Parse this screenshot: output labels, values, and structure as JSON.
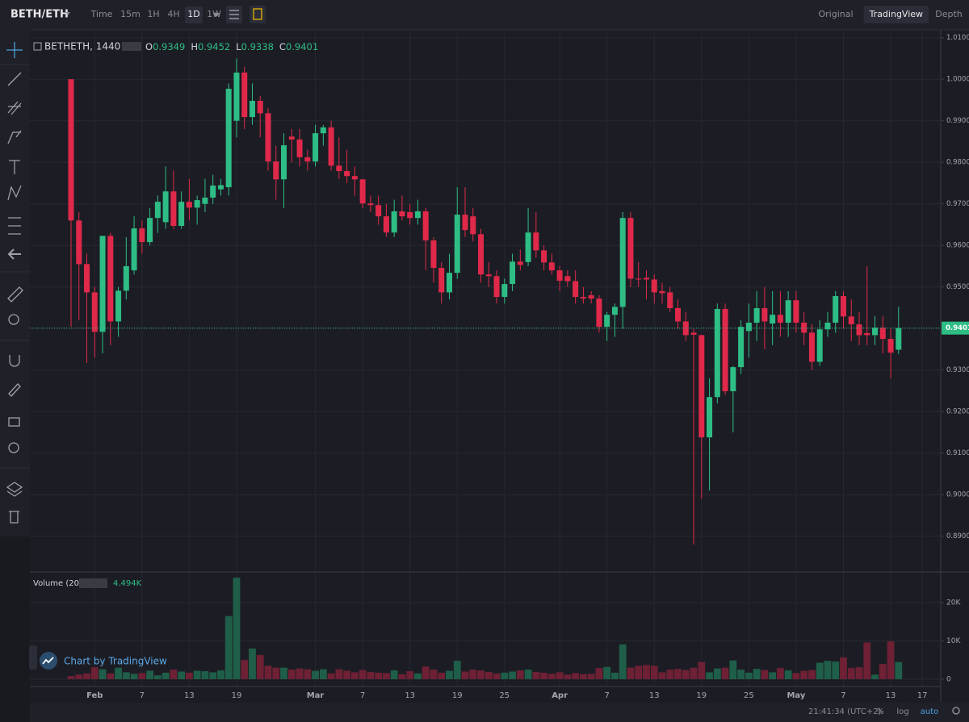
{
  "ui": {
    "pair": "BETH/ETH",
    "intervals": [
      "Time",
      "15m",
      "1H",
      "4H",
      "1D",
      "1W"
    ],
    "active_interval": 4,
    "views": [
      "Original",
      "TradingView",
      "Depth"
    ],
    "active_view": 1,
    "watermark": "Chart by TradingView",
    "clock": "21:41:34 (UTC+2)",
    "scale_options": [
      "%",
      "log",
      "auto"
    ]
  },
  "chart_data": {
    "type": "candlestick",
    "symbol": "BETHETH, 1440",
    "ohlc_prefixes": [
      "O",
      "H",
      "L",
      "C"
    ],
    "categories": [
      null,
      null,
      null,
      "Feb",
      null,
      null,
      null,
      null,
      null,
      "7",
      null,
      null,
      null,
      null,
      null,
      "13",
      null,
      null,
      null,
      null,
      null,
      "19",
      null,
      null,
      null,
      null,
      null,
      null,
      null,
      null,
      null,
      "Mar",
      null,
      null,
      null,
      null,
      null,
      "7",
      null,
      null,
      null,
      null,
      null,
      "13",
      null,
      null,
      null,
      null,
      null,
      "19",
      null,
      null,
      null,
      null,
      null,
      "25",
      null,
      null,
      null,
      null,
      null,
      null,
      "Apr",
      null,
      null,
      null,
      null,
      null,
      "7",
      null,
      null,
      null,
      null,
      null,
      "13",
      null,
      null,
      null,
      null,
      null,
      "19",
      null,
      null,
      null,
      null,
      null,
      "25",
      null,
      null,
      null,
      null,
      null,
      "May",
      null,
      null,
      null,
      null,
      null,
      "7",
      null,
      null,
      null,
      null,
      null,
      "13",
      null,
      null,
      null,
      "17"
    ],
    "open": [
      1.0,
      0.966,
      0.9555,
      0.9487,
      0.9392,
      0.9623,
      0.9417,
      0.9491,
      0.954,
      0.9641,
      0.9608,
      0.9666,
      0.9656,
      0.973,
      0.9647,
      0.9705,
      0.9691,
      0.97,
      0.9715,
      0.9735,
      0.974,
      0.99,
      1.0016,
      0.9909,
      0.9948,
      0.9918,
      0.9802,
      0.9759,
      0.9862,
      0.9855,
      0.9812,
      0.9802,
      0.987,
      0.9884,
      0.9792,
      0.9779,
      0.9767,
      0.9759,
      0.9701,
      0.9697,
      0.967,
      0.9631,
      0.9682,
      0.968,
      0.9666,
      0.9682,
      0.9612,
      0.9546,
      0.9487,
      0.9534,
      0.9674,
      0.967,
      0.9627,
      0.953,
      0.9526,
      0.9476,
      0.9507,
      0.9561,
      0.956,
      0.9631,
      0.9588,
      0.9559,
      0.954,
      0.9526,
      0.9514,
      0.9476,
      0.948,
      0.9472,
      0.9404,
      0.9433,
      0.9452,
      0.9666,
      0.952,
      0.9522,
      0.9518,
      0.949,
      0.9487,
      0.9449,
      0.9417,
      0.939,
      0.9384,
      0.9138,
      0.9235,
      0.9447,
      0.9249,
      0.9307,
      0.9394,
      0.9414,
      0.9449,
      0.9412,
      0.9433,
      0.9414,
      0.9468,
      0.9414,
      0.939,
      0.932,
      0.9398,
      0.9414,
      0.9478,
      0.9429,
      0.941,
      0.9389,
      0.9384,
      0.9402,
      0.9375,
      0.9349,
      null,
      null,
      null
    ],
    "high": [
      1.0,
      0.968,
      0.958,
      0.95,
      0.9623,
      0.963,
      0.95,
      0.962,
      0.967,
      0.966,
      0.969,
      0.972,
      0.979,
      0.978,
      0.973,
      0.976,
      0.972,
      0.976,
      0.977,
      0.976,
      0.999,
      1.005,
      1.003,
      0.999,
      0.996,
      0.993,
      0.984,
      0.987,
      0.988,
      0.988,
      0.983,
      0.989,
      0.989,
      0.99,
      0.986,
      0.983,
      0.979,
      0.976,
      0.972,
      0.972,
      0.97,
      0.971,
      0.972,
      0.97,
      0.971,
      0.969,
      0.962,
      0.956,
      0.958,
      0.974,
      0.974,
      0.969,
      0.964,
      0.956,
      0.954,
      0.952,
      0.958,
      0.959,
      0.969,
      0.968,
      0.96,
      0.958,
      0.955,
      0.954,
      0.954,
      0.95,
      0.949,
      0.948,
      0.944,
      0.946,
      0.968,
      0.968,
      0.956,
      0.954,
      0.953,
      0.951,
      0.95,
      0.947,
      0.944,
      0.94,
      0.9385,
      0.928,
      0.946,
      0.946,
      0.931,
      0.942,
      0.946,
      0.949,
      0.95,
      0.949,
      0.949,
      0.949,
      0.949,
      0.944,
      0.941,
      0.942,
      0.944,
      0.949,
      0.949,
      0.947,
      0.944,
      0.955,
      0.943,
      0.943,
      0.94,
      0.9452,
      null,
      null,
      null
    ],
    "low": [
      0.9404,
      0.942,
      0.9317,
      0.933,
      0.934,
      0.936,
      0.938,
      0.947,
      0.953,
      0.958,
      0.96,
      0.963,
      0.964,
      0.964,
      0.964,
      0.966,
      0.965,
      0.968,
      0.97,
      0.972,
      0.972,
      0.986,
      0.988,
      0.989,
      0.986,
      0.978,
      0.971,
      0.969,
      0.98,
      0.979,
      0.978,
      0.979,
      0.984,
      0.978,
      0.976,
      0.975,
      0.972,
      0.969,
      0.968,
      0.965,
      0.962,
      0.962,
      0.966,
      0.965,
      0.965,
      0.954,
      0.951,
      0.946,
      0.947,
      0.952,
      0.962,
      0.961,
      0.951,
      0.95,
      0.946,
      0.946,
      0.949,
      0.954,
      0.955,
      0.957,
      0.954,
      0.953,
      0.949,
      0.95,
      0.946,
      0.946,
      0.946,
      0.939,
      0.937,
      0.938,
      0.94,
      0.95,
      0.95,
      0.947,
      0.946,
      0.946,
      0.944,
      0.94,
      0.937,
      0.888,
      0.899,
      0.901,
      0.922,
      0.924,
      0.915,
      0.929,
      0.933,
      0.937,
      0.935,
      0.936,
      0.938,
      0.938,
      0.939,
      0.936,
      0.93,
      0.931,
      0.938,
      0.939,
      0.94,
      0.937,
      0.936,
      0.936,
      0.936,
      0.934,
      0.928,
      0.9338,
      null,
      null,
      null
    ],
    "close": [
      0.966,
      0.9555,
      0.9487,
      0.9392,
      0.9623,
      0.9417,
      0.9491,
      0.955,
      0.9641,
      0.9608,
      0.9666,
      0.9705,
      0.973,
      0.9647,
      0.9705,
      0.9691,
      0.9709,
      0.9715,
      0.9744,
      0.9745,
      0.9977,
      1.0016,
      0.9909,
      0.9948,
      0.9918,
      0.9802,
      0.9759,
      0.9841,
      0.9855,
      0.9812,
      0.9802,
      0.987,
      0.9884,
      0.9792,
      0.9779,
      0.9767,
      0.9759,
      0.9701,
      0.9697,
      0.967,
      0.9631,
      0.9682,
      0.967,
      0.9666,
      0.9682,
      0.9612,
      0.9546,
      0.9487,
      0.9534,
      0.9674,
      0.9637,
      0.9627,
      0.953,
      0.9526,
      0.9476,
      0.9507,
      0.9561,
      0.9553,
      0.9631,
      0.9588,
      0.9559,
      0.954,
      0.9515,
      0.9514,
      0.9476,
      0.9472,
      0.9472,
      0.9404,
      0.9433,
      0.9452,
      0.9666,
      0.952,
      0.9518,
      0.9518,
      0.9487,
      0.9485,
      0.9449,
      0.9417,
      0.9384,
      0.9385,
      0.9138,
      0.9235,
      0.9447,
      0.9249,
      0.9307,
      0.9404,
      0.9414,
      0.9449,
      0.9417,
      0.9433,
      0.9414,
      0.9468,
      0.9414,
      0.939,
      0.932,
      0.9398,
      0.9414,
      0.9478,
      0.9429,
      0.941,
      0.9384,
      0.9384,
      0.9402,
      0.9375,
      0.9342,
      0.9401,
      null,
      null,
      null
    ],
    "up_color": "#2ebd85",
    "down_color": "#e0294a",
    "ylim": [
      0.8816,
      1.0113
    ],
    "yticks": [
      {
        "value": 0.89,
        "label": "0.8900"
      },
      {
        "value": 0.9,
        "label": "0.9000"
      },
      {
        "value": 0.91,
        "label": "0.9100"
      },
      {
        "value": 0.92,
        "label": "0.9200"
      },
      {
        "value": 0.93,
        "label": "0.9300"
      },
      {
        "value": 0.94,
        "label": "0.9400"
      },
      {
        "value": 0.95,
        "label": "0.9500"
      },
      {
        "value": 0.96,
        "label": "0.9600"
      },
      {
        "value": 0.97,
        "label": "0.9700"
      },
      {
        "value": 0.98,
        "label": "0.9800"
      },
      {
        "value": 0.99,
        "label": "0.9900"
      },
      {
        "value": 1.0,
        "label": "1.0000"
      },
      {
        "value": 1.01,
        "label": "1.0100"
      }
    ],
    "grid": true,
    "volume_title": "Volume (20)",
    "volume_last_label": "4.494K",
    "volume": [
      800,
      1200,
      1500,
      3100,
      2600,
      1500,
      3000,
      1800,
      1400,
      1600,
      2200,
      1000,
      1700,
      2500,
      2000,
      1700,
      2200,
      2100,
      1800,
      2300,
      16500,
      26500,
      5000,
      8000,
      6300,
      3500,
      3000,
      3000,
      2500,
      2800,
      2600,
      2200,
      2600,
      1500,
      2600,
      2200,
      1800,
      2400,
      1900,
      1700,
      1600,
      2300,
      1300,
      2100,
      1500,
      3300,
      2500,
      1700,
      2200,
      4800,
      2000,
      2500,
      2300,
      1900,
      1500,
      1700,
      2000,
      2300,
      2500,
      1900,
      1700,
      1400,
      1800,
      1200,
      1600,
      1300,
      1400,
      2900,
      3200,
      1700,
      9100,
      3000,
      3500,
      3700,
      3500,
      1800,
      2500,
      2700,
      2400,
      3000,
      4500,
      1800,
      2800,
      3000,
      4900,
      2500,
      1700,
      2700,
      2400,
      1800,
      2900,
      2300,
      1600,
      2200,
      2400,
      4300,
      4800,
      4600,
      5700,
      2900,
      3100,
      9600,
      1200,
      4000,
      9900,
      4494,
      null,
      null,
      null
    ],
    "volume_up_color": "#1f5e49",
    "volume_down_color": "#6e2034",
    "y2lim": [
      -1700,
      27800
    ],
    "y2ticks": [
      0,
      {
        "value": 10000,
        "label": "10K"
      },
      {
        "value": 20000,
        "label": "20K"
      }
    ]
  }
}
